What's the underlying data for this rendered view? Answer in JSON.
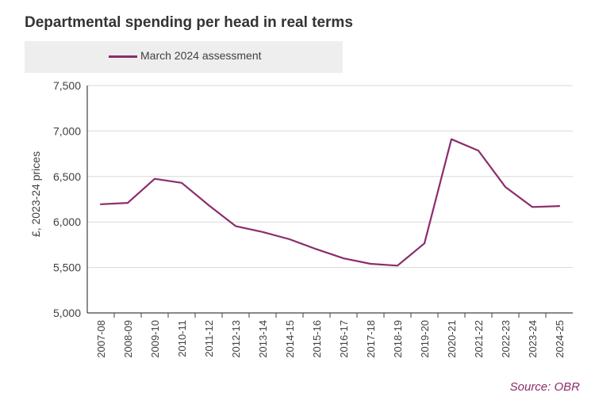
{
  "title": "Departmental spending per head in real terms",
  "source": "Source: OBR",
  "colors": {
    "series": "#8b2d6b",
    "source": "#8b2d6b",
    "grid": "#d9d9d9",
    "axis": "#404040",
    "legend_bg": "#eeeeee"
  },
  "chart_data": {
    "type": "line",
    "title": "Departmental spending per head in real terms",
    "ylabel": "£, 2023-24 prices",
    "xlabel": "",
    "ylim": [
      5000,
      7500
    ],
    "yticks": [
      "5,000",
      "5,500",
      "6,000",
      "6,500",
      "7,000",
      "7,500"
    ],
    "grid": true,
    "legend_position": "top-left",
    "categories": [
      "2007-08",
      "2008-09",
      "2009-10",
      "2010-11",
      "2011-12",
      "2012-13",
      "2013-14",
      "2014-15",
      "2015-16",
      "2016-17",
      "2017-18",
      "2018-19",
      "2019-20",
      "2020-21",
      "2021-22",
      "2022-23",
      "2023-24",
      "2024-25"
    ],
    "series": [
      {
        "name": "March 2024 assessment",
        "values": [
          6195,
          6210,
          6475,
          6430,
          6185,
          5955,
          5890,
          5810,
          5700,
          5600,
          5540,
          5520,
          5765,
          6910,
          6785,
          6385,
          6165,
          6175
        ]
      }
    ]
  }
}
